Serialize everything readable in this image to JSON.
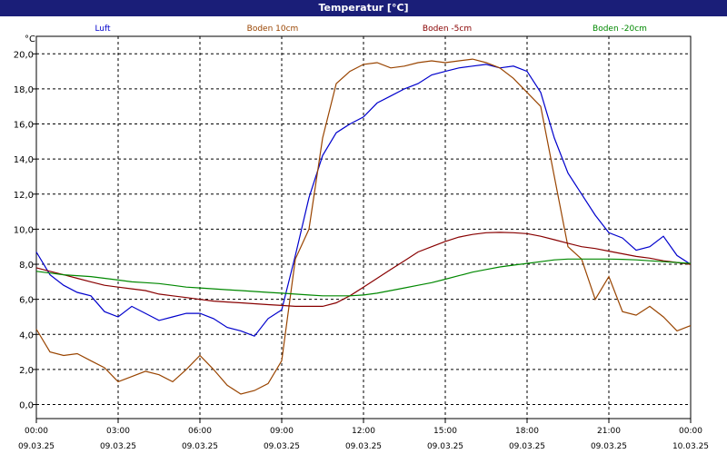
{
  "window": {
    "title": "Temperatur [°C]"
  },
  "chart_data": {
    "type": "line",
    "title": "Temperatur [°C]",
    "ylabel": "°C",
    "ylim": [
      -0.8,
      21.0
    ],
    "xlim": [
      0,
      24
    ],
    "grid": true,
    "legend_position": "top",
    "y_ticks": [
      "0,0",
      "2,0",
      "4,0",
      "6,0",
      "8,0",
      "10,0",
      "12,0",
      "14,0",
      "16,0",
      "18,0",
      "20,0"
    ],
    "x_ticks": [
      {
        "time": "00:00",
        "date": "09.03.25"
      },
      {
        "time": "03:00",
        "date": "09.03.25"
      },
      {
        "time": "06:00",
        "date": "09.03.25"
      },
      {
        "time": "09:00",
        "date": "09.03.25"
      },
      {
        "time": "12:00",
        "date": "09.03.25"
      },
      {
        "time": "15:00",
        "date": "09.03.25"
      },
      {
        "time": "18:00",
        "date": "09.03.25"
      },
      {
        "time": "21:00",
        "date": "09.03.25"
      },
      {
        "time": "00:00",
        "date": "10.03.25"
      }
    ],
    "x": [
      0,
      0.5,
      1,
      1.5,
      2,
      2.5,
      3,
      3.5,
      4,
      4.5,
      5,
      5.5,
      6,
      6.5,
      7,
      7.5,
      8,
      8.5,
      9,
      9.5,
      10,
      10.5,
      11,
      11.5,
      12,
      12.5,
      13,
      13.5,
      14,
      14.5,
      15,
      15.5,
      16,
      16.5,
      17,
      17.5,
      18,
      18.5,
      19,
      19.5,
      20,
      20.5,
      21,
      21.5,
      22,
      22.5,
      23,
      23.5,
      24
    ],
    "series": [
      {
        "name": "Luft",
        "color": "#0000cc",
        "values": [
          8.7,
          7.4,
          6.8,
          6.4,
          6.2,
          5.3,
          5.0,
          5.6,
          5.2,
          4.8,
          5.0,
          5.2,
          5.2,
          4.9,
          4.4,
          4.2,
          3.9,
          4.9,
          5.4,
          8.5,
          11.8,
          14.2,
          15.5,
          16.0,
          16.4,
          17.2,
          17.6,
          18.0,
          18.3,
          18.8,
          19.0,
          19.2,
          19.3,
          19.4,
          19.2,
          19.3,
          19.0,
          17.8,
          15.2,
          13.2,
          12.0,
          10.8,
          9.8,
          9.5,
          8.8,
          9.0,
          9.6,
          8.5,
          8.0
        ]
      },
      {
        "name": "Boden 10cm",
        "color": "#994400",
        "values": [
          4.3,
          3.0,
          2.8,
          2.9,
          2.5,
          2.1,
          1.3,
          1.6,
          1.9,
          1.7,
          1.3,
          2.0,
          2.8,
          2.0,
          1.1,
          0.6,
          0.8,
          1.2,
          2.5,
          8.3,
          10.0,
          15.2,
          18.3,
          19.0,
          19.4,
          19.5,
          19.2,
          19.3,
          19.5,
          19.6,
          19.5,
          19.6,
          19.7,
          19.5,
          19.2,
          18.6,
          17.8,
          17.0,
          13.0,
          9.0,
          8.3,
          6.0,
          7.3,
          5.3,
          5.1,
          5.6,
          5.0,
          4.2,
          4.5
        ]
      },
      {
        "name": "Boden -5cm",
        "color": "#880000",
        "values": [
          7.8,
          7.6,
          7.4,
          7.2,
          7.0,
          6.8,
          6.7,
          6.6,
          6.5,
          6.3,
          6.2,
          6.1,
          6.0,
          5.9,
          5.85,
          5.8,
          5.75,
          5.7,
          5.65,
          5.6,
          5.6,
          5.6,
          5.8,
          6.2,
          6.7,
          7.2,
          7.7,
          8.2,
          8.7,
          9.0,
          9.3,
          9.55,
          9.7,
          9.8,
          9.82,
          9.8,
          9.75,
          9.6,
          9.4,
          9.2,
          9.0,
          8.9,
          8.75,
          8.6,
          8.45,
          8.35,
          8.2,
          8.1,
          8.0
        ]
      },
      {
        "name": "Boden -20cm",
        "color": "#008800",
        "values": [
          7.6,
          7.5,
          7.4,
          7.35,
          7.3,
          7.2,
          7.1,
          7.0,
          6.95,
          6.9,
          6.8,
          6.7,
          6.65,
          6.6,
          6.55,
          6.5,
          6.45,
          6.4,
          6.35,
          6.3,
          6.25,
          6.2,
          6.2,
          6.2,
          6.25,
          6.35,
          6.5,
          6.65,
          6.8,
          6.95,
          7.15,
          7.35,
          7.55,
          7.7,
          7.85,
          7.95,
          8.05,
          8.15,
          8.25,
          8.3,
          8.3,
          8.3,
          8.3,
          8.28,
          8.25,
          8.2,
          8.15,
          8.1,
          8.05
        ]
      }
    ]
  }
}
